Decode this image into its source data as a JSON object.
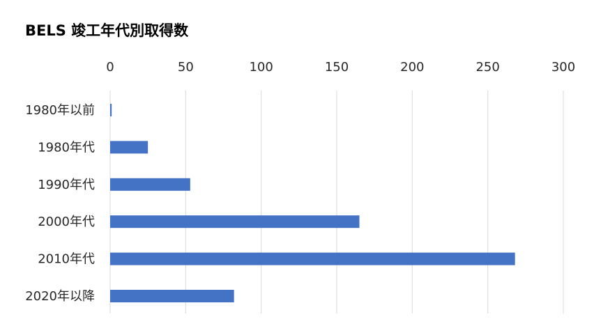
{
  "chart_data": {
    "type": "bar",
    "orientation": "horizontal",
    "title": "BELS 竣工年代別取得数",
    "categories": [
      "1980年以前",
      "1980年代",
      "1990年代",
      "2000年代",
      "2010年代",
      "2020年以降"
    ],
    "values": [
      1,
      25,
      53,
      165,
      268,
      82
    ],
    "xlim": [
      0,
      300
    ],
    "x_ticks": [
      0,
      50,
      100,
      150,
      200,
      250,
      300
    ],
    "x_axis_position": "top",
    "grid": true,
    "legend": "none",
    "bar_color": "#4472C4",
    "grid_color": "#D9D9D9"
  }
}
